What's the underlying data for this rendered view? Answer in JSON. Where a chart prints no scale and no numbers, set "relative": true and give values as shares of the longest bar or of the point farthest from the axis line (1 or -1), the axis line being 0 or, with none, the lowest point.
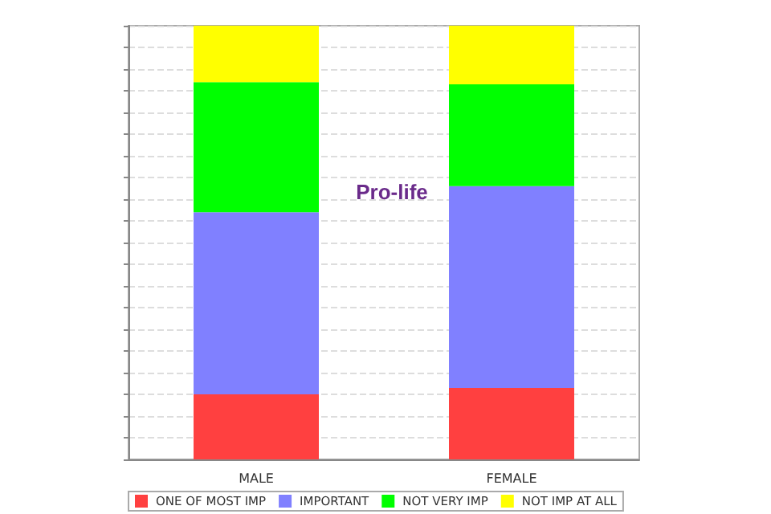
{
  "chart_data": {
    "type": "bar",
    "title": "Pro-life",
    "categories": [
      "MALE",
      "FEMALE"
    ],
    "stacked": true,
    "relative": true,
    "grid": "y",
    "legend": "bottom",
    "series": [
      {
        "name": "ONE OF MOST IMP",
        "color": "#ff4040",
        "values": [
          0.15,
          0.165
        ]
      },
      {
        "name": "IMPORTANT",
        "color": "#8080ff",
        "values": [
          0.42,
          0.465
        ]
      },
      {
        "name": "NOT VERY IMP",
        "color": "#00ff00",
        "values": [
          0.3,
          0.235
        ]
      },
      {
        "name": "NOT IMP AT ALL",
        "color": "#ffff00",
        "values": [
          0.13,
          0.135
        ]
      }
    ]
  }
}
